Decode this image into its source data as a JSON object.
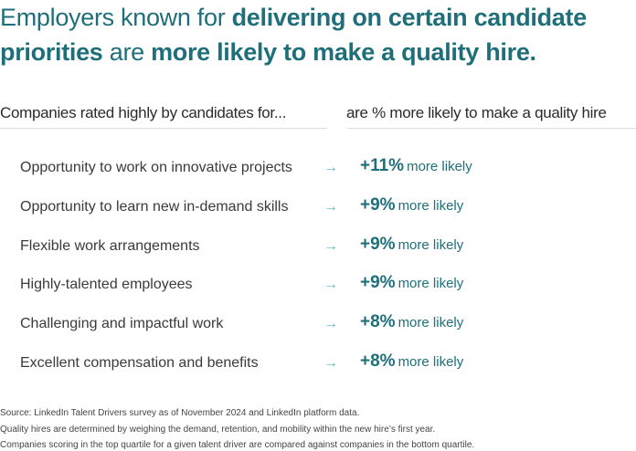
{
  "title": {
    "parts": [
      {
        "text": "Employers known for ",
        "weight": "light"
      },
      {
        "text": "delivering on certain candidate priorities",
        "weight": "bold"
      },
      {
        "text": " are ",
        "weight": "light"
      },
      {
        "text": "more likely to make a quality hire.",
        "weight": "bold"
      }
    ]
  },
  "headers": {
    "left": "Companies rated highly by candidates for...",
    "right": "are % more likely to make a quality hire"
  },
  "colors": {
    "accent": "#1f6f7a",
    "arrow": "#5fb6c4"
  },
  "chart_data": {
    "type": "table",
    "columns": [
      "Companies rated highly by candidates for...",
      "are % more likely to make a quality hire"
    ],
    "rows": [
      {
        "driver": "Opportunity to work on innovative projects",
        "value": "+11%",
        "suffix": "more likely"
      },
      {
        "driver": "Opportunity to learn new in-demand skills",
        "value": "+9%",
        "suffix": "more likely"
      },
      {
        "driver": "Flexible work arrangements",
        "value": "+9%",
        "suffix": "more likely"
      },
      {
        "driver": "Highly-talented employees",
        "value": "+9%",
        "suffix": "more likely"
      },
      {
        "driver": "Challenging and impactful work",
        "value": "+8%",
        "suffix": "more likely"
      },
      {
        "driver": "Excellent compensation and benefits",
        "value": "+8%",
        "suffix": "more likely"
      }
    ]
  },
  "arrow_icon": "arrow-right-icon",
  "footnotes": [
    "Source: LinkedIn Talent Drivers survey as of November 2024 and LinkedIn platform data.",
    "Quality hires are determined by weighing the demand, retention, and mobility within the new hire’s first year.",
    "Companies scoring in the top quartile for a given talent driver are compared against companies in the bottom quartile."
  ]
}
